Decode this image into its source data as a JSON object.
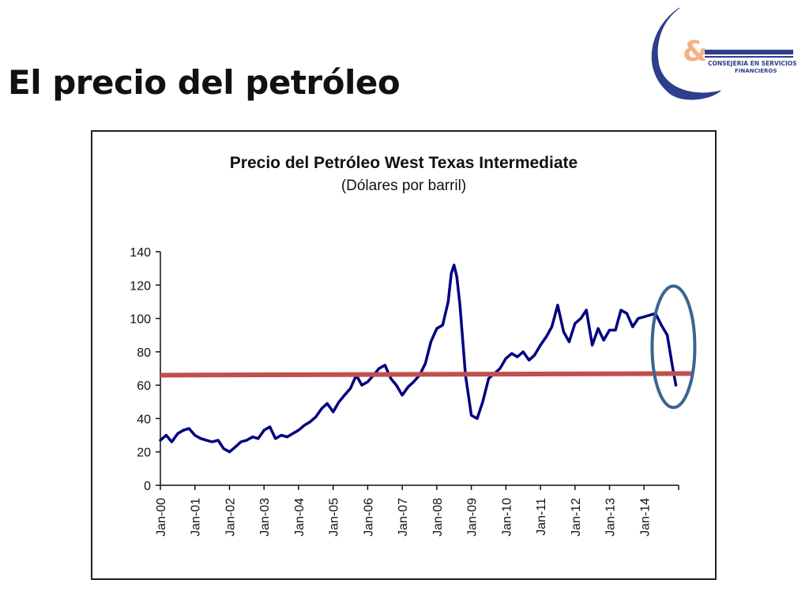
{
  "slide": {
    "title": "El precio del petróleo"
  },
  "logo": {
    "symbol": "&",
    "line1": "CONSEJERIA EN SERVICIOS",
    "line2": "FINANCIEROS"
  },
  "colors": {
    "series": "#000080",
    "trend": "#c0504d",
    "highlight": "#3c6491",
    "logo_accent": "#f4b183",
    "logo_navy": "#2e3e8c"
  },
  "chart_data": {
    "type": "line",
    "title": "Precio del Petróleo West Texas Intermediate",
    "subtitle": "(Dólares por barril)",
    "ylim": [
      0,
      140
    ],
    "yticks": [
      0,
      20,
      40,
      60,
      80,
      100,
      120,
      140
    ],
    "xlim": [
      2000.0,
      2015.0
    ],
    "xtick_labels": [
      "Jan-00",
      "Jan-01",
      "Jan-02",
      "Jan-03",
      "Jan-04",
      "Jan-05",
      "Jan-06",
      "Jan-07",
      "Jan-08",
      "Jan-09",
      "Jan-10",
      "Jan-11",
      "Jan-12",
      "Jan-13",
      "Jan-14"
    ],
    "series": [
      {
        "x": [
          2000.0,
          2000.17,
          2000.33,
          2000.5,
          2000.67,
          2000.83,
          2001.0,
          2001.17,
          2001.33,
          2001.5,
          2001.67,
          2001.83,
          2002.0,
          2002.17,
          2002.33,
          2002.5,
          2002.67,
          2002.83,
          2003.0,
          2003.17,
          2003.33,
          2003.5,
          2003.67,
          2003.83,
          2004.0,
          2004.17,
          2004.33,
          2004.5,
          2004.67,
          2004.83,
          2005.0,
          2005.17,
          2005.33,
          2005.5,
          2005.67,
          2005.83,
          2006.0,
          2006.17,
          2006.33,
          2006.5,
          2006.67,
          2006.83,
          2007.0,
          2007.17,
          2007.33,
          2007.5,
          2007.67,
          2007.83,
          2008.0,
          2008.17,
          2008.33,
          2008.42,
          2008.5,
          2008.58,
          2008.67,
          2008.83,
          2009.0,
          2009.08,
          2009.17,
          2009.33,
          2009.5,
          2009.67,
          2009.83,
          2010.0,
          2010.17,
          2010.33,
          2010.5,
          2010.67,
          2010.83,
          2011.0,
          2011.17,
          2011.33,
          2011.5,
          2011.67,
          2011.83,
          2012.0,
          2012.17,
          2012.33,
          2012.5,
          2012.67,
          2012.83,
          2013.0,
          2013.17,
          2013.33,
          2013.5,
          2013.67,
          2013.83,
          2014.0,
          2014.17,
          2014.33,
          2014.5,
          2014.67,
          2014.75,
          2014.83,
          2014.92
        ],
        "y": [
          27,
          30,
          26,
          31,
          33,
          34,
          30,
          28,
          27,
          26,
          27,
          22,
          20,
          23,
          26,
          27,
          29,
          28,
          33,
          35,
          28,
          30,
          29,
          31,
          33,
          36,
          38,
          41,
          46,
          49,
          44,
          50,
          54,
          58,
          66,
          60,
          62,
          66,
          70,
          72,
          64,
          60,
          54,
          59,
          62,
          66,
          73,
          86,
          94,
          96,
          110,
          127,
          132,
          125,
          108,
          66,
          42,
          41,
          40,
          50,
          64,
          67,
          70,
          76,
          79,
          77,
          80,
          75,
          78,
          84,
          89,
          95,
          108,
          92,
          86,
          97,
          100,
          105,
          84,
          94,
          87,
          93,
          93,
          105,
          103,
          95,
          100,
          101,
          102,
          103,
          96,
          90,
          80,
          70,
          60
        ]
      }
    ],
    "reference_lines": [
      {
        "type": "horizontal",
        "y_start": 66,
        "y_end": 67
      }
    ]
  }
}
